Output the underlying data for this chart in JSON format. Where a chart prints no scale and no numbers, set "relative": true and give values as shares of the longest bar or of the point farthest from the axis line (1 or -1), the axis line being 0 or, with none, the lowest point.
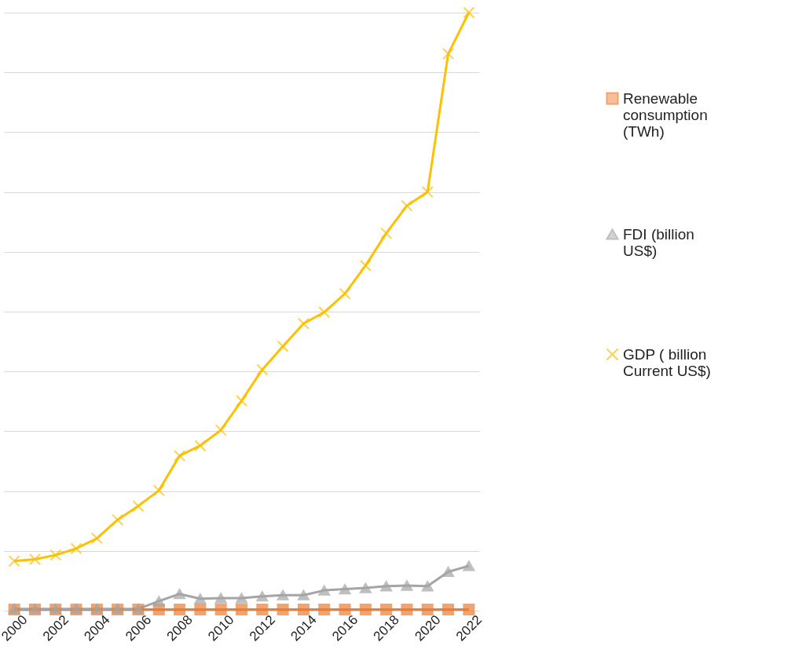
{
  "chart_data": {
    "type": "line",
    "relative": true,
    "grid": "y",
    "legend": "right",
    "categories": [
      "2000",
      null,
      "2002",
      null,
      "2004",
      null,
      "2006",
      null,
      "2008",
      null,
      "2010",
      null,
      "2012",
      null,
      "2014",
      null,
      "2016",
      null,
      "2018",
      null,
      "2020",
      null,
      "2022"
    ],
    "series": [
      {
        "name": "Renewable consumption (TWh)",
        "color": "#ed7d31",
        "marker": "square",
        "values": [
          0.002,
          0.002,
          0.002,
          0.002,
          0.002,
          0.002,
          0.002,
          0.002,
          0.002,
          0.002,
          0.002,
          0.002,
          0.002,
          0.002,
          0.002,
          0.002,
          0.002,
          0.002,
          0.002,
          0.002,
          0.002,
          0.002,
          0.002
        ]
      },
      {
        "name": "FDI (billion US$)",
        "color": "#a5a5a5",
        "marker": "triangle",
        "values": [
          0.003,
          0.003,
          0.003,
          0.003,
          0.003,
          0.003,
          0.003,
          0.016,
          0.028,
          0.02,
          0.021,
          0.021,
          0.024,
          0.026,
          0.026,
          0.034,
          0.036,
          0.038,
          0.041,
          0.042,
          0.041,
          0.065,
          0.075
        ]
      },
      {
        "name": "GDP ( billion Current US$)",
        "color": "#ffc000",
        "marker": "cross",
        "values": [
          0.083,
          0.086,
          0.093,
          0.104,
          0.121,
          0.152,
          0.175,
          0.201,
          0.259,
          0.276,
          0.302,
          0.351,
          0.403,
          0.442,
          0.48,
          0.499,
          0.53,
          0.577,
          0.631,
          0.677,
          0.7,
          0.931,
          1
        ]
      }
    ]
  }
}
